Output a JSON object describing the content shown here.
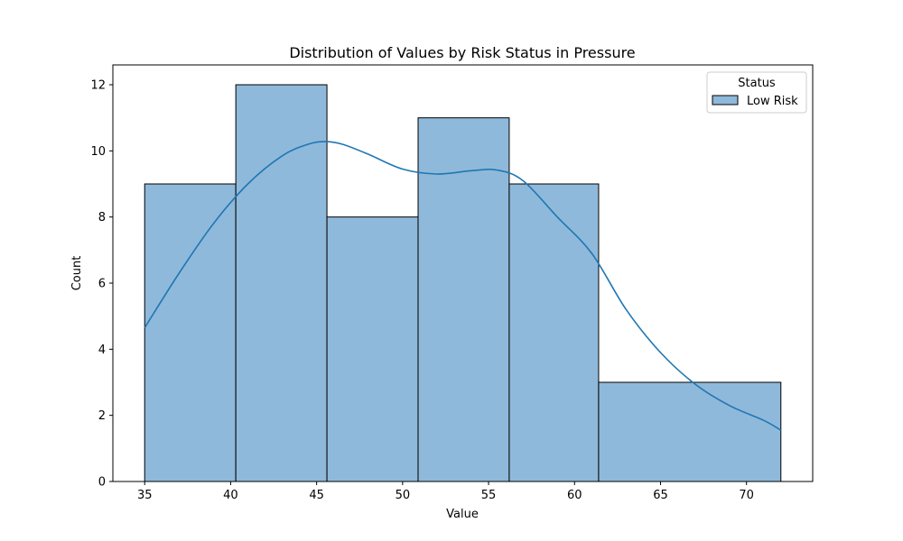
{
  "chart_data": {
    "type": "bar",
    "title": "Distribution of Values by Risk Status in Pressure",
    "xlabel": "Value",
    "ylabel": "Count",
    "xlim": [
      33.15,
      73.85
    ],
    "ylim": [
      0,
      12.6
    ],
    "xticks": [
      35,
      40,
      45,
      50,
      55,
      60,
      65,
      70
    ],
    "yticks": [
      0,
      2,
      4,
      6,
      8,
      10,
      12
    ],
    "legend": {
      "title": "Status",
      "placement": "top-right",
      "entries": [
        "Low Risk"
      ]
    },
    "series": [
      {
        "name": "Low Risk",
        "color": "#1f77b4",
        "fill_color": "#8fb9da",
        "bins": [
          {
            "start": 35.0,
            "end": 40.3,
            "count": 9
          },
          {
            "start": 40.3,
            "end": 45.6,
            "count": 12
          },
          {
            "start": 45.6,
            "end": 50.9,
            "count": 8
          },
          {
            "start": 50.9,
            "end": 56.2,
            "count": 11
          },
          {
            "start": 56.2,
            "end": 61.4,
            "count": 9
          },
          {
            "start": 61.4,
            "end": 72.0,
            "count": 3
          }
        ],
        "kde": {
          "x": [
            35.0,
            37.0,
            39.0,
            41.0,
            43.0,
            44.5,
            45.5,
            46.5,
            48.0,
            50.0,
            52.0,
            54.0,
            55.5,
            57.0,
            59.0,
            61.0,
            63.0,
            65.0,
            67.0,
            69.0,
            71.0,
            72.0
          ],
          "y": [
            4.65,
            6.3,
            7.8,
            9.0,
            9.85,
            10.2,
            10.28,
            10.2,
            9.9,
            9.45,
            9.3,
            9.4,
            9.42,
            9.1,
            8.0,
            6.9,
            5.2,
            3.9,
            2.95,
            2.3,
            1.85,
            1.55
          ]
        }
      }
    ]
  }
}
